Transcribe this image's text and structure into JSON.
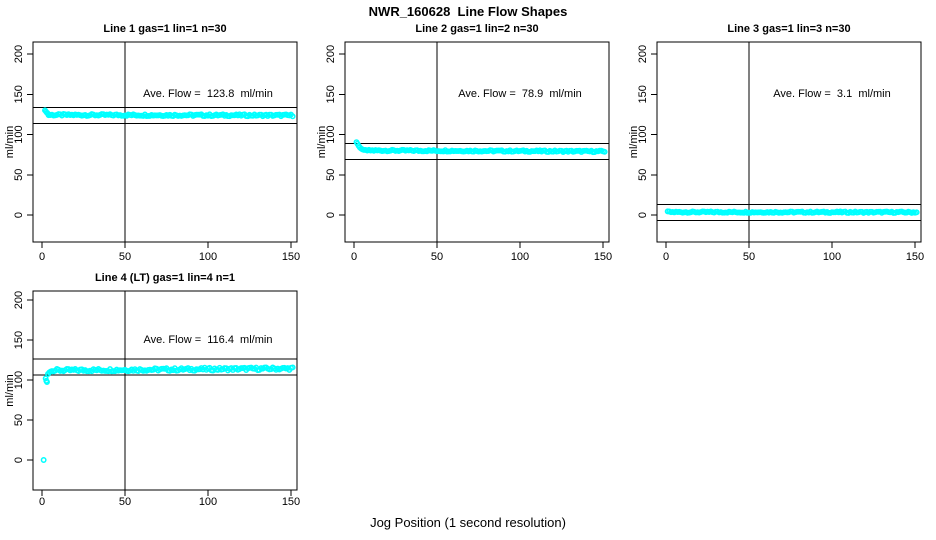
{
  "page": {
    "title": "NWR_160628  Line Flow Shapes",
    "xlabel": "Jog Position (1 second resolution)",
    "ylabel": "ml/min",
    "point_color": "#00ffff",
    "axis_color": "#000000",
    "background": "#ffffff"
  },
  "chart_data": [
    {
      "type": "scatter",
      "title": "Line 1 gas=1 lin=1 n=30",
      "annotation": "Ave. Flow =  123.8  ml/min",
      "ave_flow_ml_min": 123.8,
      "x_ticks": [
        0,
        50,
        100,
        150
      ],
      "y_ticks": [
        0,
        50,
        100,
        150,
        200
      ],
      "xlim": [
        -5,
        154
      ],
      "ylim": [
        -33,
        216
      ],
      "vline_x": 50,
      "hlines": [
        133.8,
        113.8
      ],
      "series": {
        "x_steady_from": 4,
        "x_end": 151,
        "y_from": 124.3,
        "y_to": 123.8,
        "jitter": 1.2,
        "lead_points": [
          [
            1.8,
            130
          ],
          [
            2.4,
            128.5
          ],
          [
            3.0,
            127.0
          ],
          [
            3.6,
            125.8
          ]
        ],
        "outliers": []
      }
    },
    {
      "type": "scatter",
      "title": "Line 2 gas=1 lin=2 n=30",
      "annotation": "Ave. Flow =  78.9  ml/min",
      "ave_flow_ml_min": 78.9,
      "x_ticks": [
        0,
        50,
        100,
        150
      ],
      "y_ticks": [
        0,
        50,
        100,
        150,
        200
      ],
      "xlim": [
        -5,
        154
      ],
      "ylim": [
        -33,
        216
      ],
      "vline_x": 50,
      "hlines": [
        88.9,
        68.9
      ],
      "series": {
        "x_steady_from": 7,
        "x_end": 151,
        "y_from": 80.2,
        "y_to": 79.0,
        "jitter": 1.0,
        "lead_points": [
          [
            1.5,
            90.5
          ],
          [
            2.1,
            88.5
          ],
          [
            2.8,
            86.0
          ],
          [
            3.5,
            84.0
          ],
          [
            4.3,
            82.5
          ],
          [
            5.1,
            81.5
          ],
          [
            6.0,
            80.8
          ]
        ],
        "outliers": []
      }
    },
    {
      "type": "scatter",
      "title": "Line 3 gas=1 lin=3 n=30",
      "annotation": "Ave. Flow =  3.1  ml/min",
      "ave_flow_ml_min": 3.1,
      "x_ticks": [
        0,
        50,
        100,
        150
      ],
      "y_ticks": [
        0,
        50,
        100,
        150,
        200
      ],
      "xlim": [
        -5,
        154
      ],
      "ylim": [
        -33,
        216
      ],
      "vline_x": 50,
      "hlines": [
        13.1,
        -6.9
      ],
      "series": {
        "x_steady_from": 2,
        "x_end": 151,
        "y_from": 3.6,
        "y_to": 3.4,
        "jitter": 0.9,
        "lead_points": [
          [
            1.0,
            4.5
          ]
        ],
        "outliers": []
      }
    },
    {
      "type": "scatter",
      "title": "Line 4 (LT) gas=1 lin=4 n=1",
      "annotation": "Ave. Flow =  116.4  ml/min",
      "ave_flow_ml_min": 116.4,
      "x_ticks": [
        0,
        50,
        100,
        150
      ],
      "y_ticks": [
        0,
        50,
        100,
        150,
        200
      ],
      "xlim": [
        -5,
        154
      ],
      "ylim": [
        -33,
        216
      ],
      "vline_x": 50,
      "hlines": [
        126.4,
        106.4
      ],
      "series": {
        "x_steady_from": 7,
        "x_end": 151,
        "y_from": 112.0,
        "y_to": 114.4,
        "jitter": 1.8,
        "lead_points": [
          [
            2.2,
            102.0
          ],
          [
            2.6,
            99.0
          ],
          [
            3.0,
            97.5
          ],
          [
            3.6,
            107.5
          ],
          [
            4.4,
            109.5
          ],
          [
            5.2,
            110.5
          ],
          [
            6.0,
            111.2
          ]
        ],
        "outliers": [
          [
            1,
            0
          ]
        ]
      }
    }
  ]
}
